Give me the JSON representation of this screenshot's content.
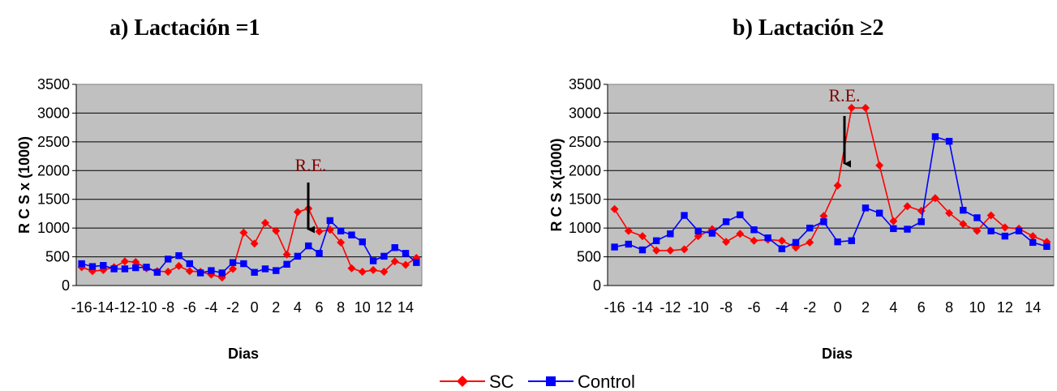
{
  "legend": {
    "placement": "bottom-center"
  },
  "chart_data": [
    {
      "type": "line",
      "title": "a) Lactación =1",
      "xlabel": "Dias",
      "ylabel": "R C S  x (1000)",
      "ylim": [
        0,
        3500
      ],
      "yticks": [
        0,
        500,
        1000,
        1500,
        2000,
        2500,
        3000,
        3500
      ],
      "xlim": [
        -16,
        15
      ],
      "xticks": [
        -16,
        -14,
        -12,
        -10,
        -8,
        -6,
        -4,
        -2,
        0,
        2,
        4,
        6,
        8,
        10,
        12,
        14
      ],
      "grid": true,
      "background": "#c0c0c0",
      "x": [
        -16,
        -15,
        -14,
        -13,
        -12,
        -11,
        -10,
        -9,
        -8,
        -7,
        -6,
        -5,
        -4,
        -3,
        -2,
        -1,
        0,
        1,
        2,
        3,
        4,
        5,
        6,
        7,
        8,
        9,
        10,
        11,
        12,
        13,
        14,
        15
      ],
      "series": [
        {
          "name": "SC",
          "color": "#ff0000",
          "marker": "diamond",
          "values": [
            320,
            250,
            270,
            320,
            420,
            410,
            300,
            250,
            240,
            340,
            250,
            240,
            190,
            140,
            290,
            920,
            730,
            1090,
            950,
            540,
            1280,
            1340,
            940,
            970,
            750,
            300,
            240,
            270,
            240,
            420,
            360,
            480
          ]
        },
        {
          "name": "Control",
          "color": "#0000ff",
          "marker": "square",
          "values": [
            380,
            330,
            350,
            290,
            290,
            310,
            320,
            230,
            460,
            520,
            380,
            220,
            260,
            220,
            400,
            380,
            230,
            290,
            260,
            370,
            510,
            690,
            560,
            1130,
            950,
            880,
            760,
            430,
            510,
            660,
            560,
            400
          ]
        }
      ],
      "annotations": [
        {
          "text": "R.E.",
          "x": 0,
          "color": "#800000"
        }
      ]
    },
    {
      "type": "line",
      "title": "b) Lactación ≥2",
      "xlabel": "Dias",
      "ylabel": "R C S  x(1000)",
      "ylim": [
        0,
        3500
      ],
      "yticks": [
        0,
        500,
        1000,
        1500,
        2000,
        2500,
        3000,
        3500
      ],
      "xlim": [
        -16,
        15
      ],
      "xticks": [
        -16,
        -14,
        -12,
        -10,
        -8,
        -6,
        -4,
        -2,
        0,
        2,
        4,
        6,
        8,
        10,
        12,
        14
      ],
      "grid": true,
      "background": "#c0c0c0",
      "x": [
        -16,
        -15,
        -14,
        -13,
        -12,
        -11,
        -10,
        -9,
        -8,
        -7,
        -6,
        -5,
        -4,
        -3,
        -2,
        -1,
        0,
        1,
        2,
        3,
        4,
        5,
        6,
        7,
        8,
        9,
        10,
        11,
        12,
        13,
        14,
        15
      ],
      "series": [
        {
          "name": "SC",
          "color": "#ff0000",
          "marker": "diamond",
          "values": [
            1330,
            950,
            860,
            610,
            610,
            630,
            860,
            980,
            760,
            900,
            780,
            800,
            780,
            660,
            750,
            1210,
            1740,
            3090,
            3090,
            2090,
            1120,
            1380,
            1300,
            1520,
            1260,
            1070,
            950,
            1220,
            1010,
            990,
            860,
            760
          ]
        },
        {
          "name": "Control",
          "color": "#0000ff",
          "marker": "square",
          "values": [
            670,
            720,
            620,
            780,
            900,
            1220,
            950,
            910,
            1110,
            1230,
            970,
            830,
            640,
            750,
            1000,
            1110,
            760,
            780,
            1350,
            1260,
            990,
            980,
            1110,
            2590,
            2510,
            1310,
            1180,
            950,
            860,
            950,
            750,
            680
          ]
        }
      ],
      "annotations": [
        {
          "text": "R.E.",
          "x": 0,
          "color": "#800000"
        }
      ]
    }
  ]
}
